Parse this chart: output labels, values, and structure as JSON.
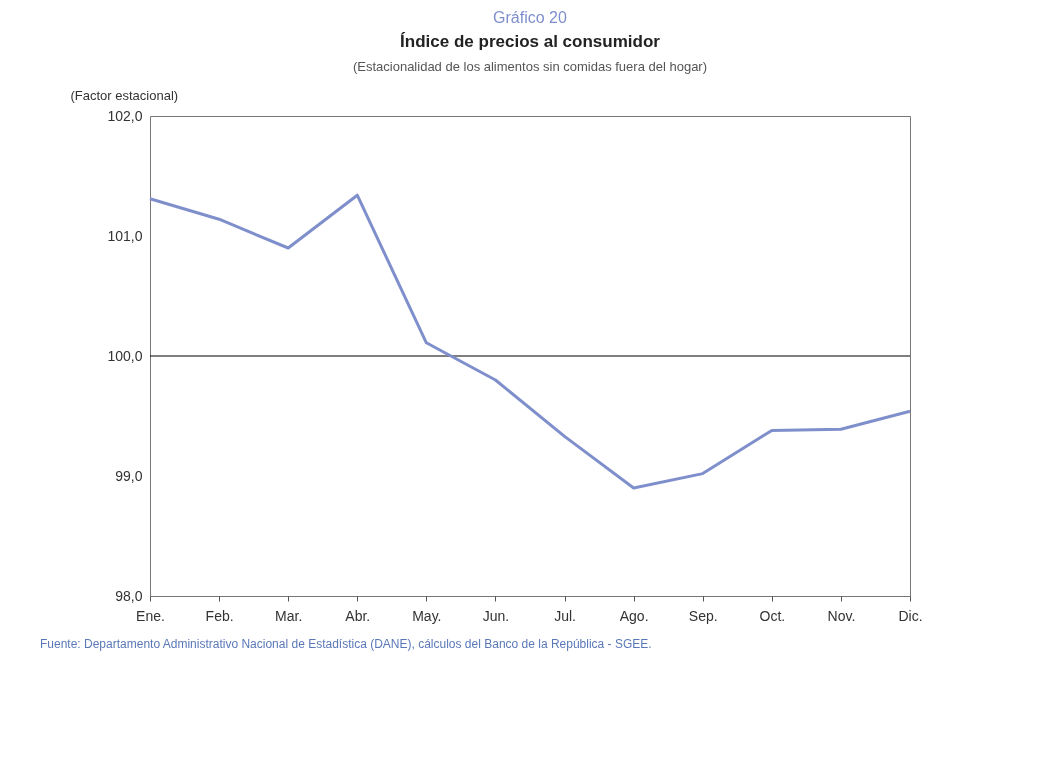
{
  "chart_data": {
    "type": "line",
    "title": "Índice de precios al consumidor",
    "subtitle": "(Estacionalidad de los alimentos sin comidas fuera del hogar)",
    "ylabel": "(Factor estacional)",
    "categories": [
      "Ene.",
      "Feb.",
      "Mar.",
      "Abr.",
      "May.",
      "Jun.",
      "Jul.",
      "Ago.",
      "Sep.",
      "Oct.",
      "Nov.",
      "Dic."
    ],
    "series": [
      {
        "color": "#7f8fcc",
        "values": [
          101.31,
          101.14,
          100.9,
          101.34,
          100.11,
          99.8,
          99.33,
          98.9,
          99.02,
          99.38,
          99.39,
          99.54
        ]
      }
    ],
    "ylim": [
      98,
      102
    ],
    "yticks": [
      {
        "value": 98,
        "label": "98,0"
      },
      {
        "value": 99,
        "label": "99,0"
      },
      {
        "value": 100,
        "label": "100,0"
      },
      {
        "value": 101,
        "label": "101,0"
      },
      {
        "value": 102,
        "label": "102,0"
      }
    ],
    "ref_lines": [
      {
        "axis": "y",
        "value": 100,
        "color": "#000000"
      }
    ],
    "grid": false,
    "marker": "none",
    "line_style": "solid",
    "annotations": [
      "Gráfico 20",
      "Fuente: Departamento Administrativo Nacional de Estadística (DANE), cálculos del Banco de la República - SGEE."
    ]
  }
}
